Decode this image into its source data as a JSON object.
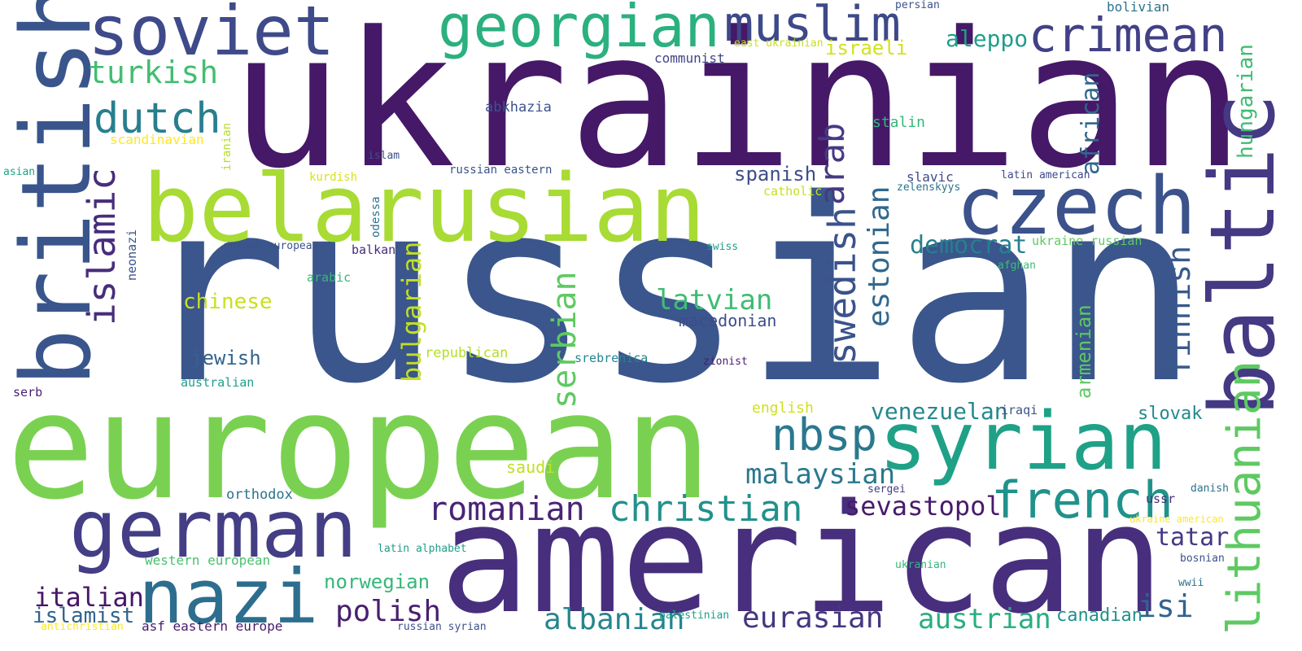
{
  "words": [
    {
      "id": "ukrainian",
      "text": "ukrainian",
      "color": "#461868"
    },
    {
      "id": "russian",
      "text": "russian",
      "color": "#3A568C"
    },
    {
      "id": "european",
      "text": "european",
      "color": "#7AD151"
    },
    {
      "id": "american",
      "text": "american",
      "color": "#472F7D"
    },
    {
      "id": "belarusian",
      "text": "belarusian",
      "color": "#A8DB34"
    },
    {
      "id": "british",
      "text": "british",
      "color": "#39558C"
    },
    {
      "id": "german",
      "text": "german",
      "color": "#433E85"
    },
    {
      "id": "nazi",
      "text": "nazi",
      "color": "#2D6E8E"
    },
    {
      "id": "syrian",
      "text": "syrian",
      "color": "#1FA187"
    },
    {
      "id": "czech",
      "text": "czech",
      "color": "#3B528B"
    },
    {
      "id": "baltic",
      "text": "baltic",
      "color": "#443983"
    },
    {
      "id": "soviet",
      "text": "soviet",
      "color": "#3E4A89"
    },
    {
      "id": "georgian",
      "text": "georgian",
      "color": "#2BB07F"
    },
    {
      "id": "muslim",
      "text": "muslim",
      "color": "#3E4989"
    },
    {
      "id": "crimean",
      "text": "crimean",
      "color": "#424086"
    },
    {
      "id": "french",
      "text": "french",
      "color": "#20928C"
    },
    {
      "id": "islamic",
      "text": "islamic",
      "color": "#472D7B"
    },
    {
      "id": "dutch",
      "text": "dutch",
      "color": "#277F8E"
    },
    {
      "id": "turkish",
      "text": "turkish",
      "color": "#42BE71"
    },
    {
      "id": "nbsp",
      "text": "nbsp",
      "color": "#2A788E"
    },
    {
      "id": "christian",
      "text": "christian",
      "color": "#21918C"
    },
    {
      "id": "swedish",
      "text": "swedish",
      "color": "#3B528B"
    },
    {
      "id": "lithuanian",
      "text": "lithuanian",
      "color": "#5EC962"
    },
    {
      "id": "romanian",
      "text": "romanian",
      "color": "#482576"
    },
    {
      "id": "eurasian",
      "text": "eurasian",
      "color": "#453781"
    },
    {
      "id": "albanian",
      "text": "albanian",
      "color": "#25858E"
    },
    {
      "id": "austrian",
      "text": "austrian",
      "color": "#28AE80"
    },
    {
      "id": "serbian",
      "text": "serbian",
      "color": "#5EC962"
    },
    {
      "id": "sevastopol",
      "text": "sevastopol",
      "color": "#481A6C"
    },
    {
      "id": "polish",
      "text": "polish",
      "color": "#481F70"
    },
    {
      "id": "malaysian",
      "text": "malaysian",
      "color": "#2A788E"
    },
    {
      "id": "latvian",
      "text": "latvian",
      "color": "#3FBC73"
    },
    {
      "id": "finnish",
      "text": "finnish",
      "color": "#38598C"
    },
    {
      "id": "estonian",
      "text": "estonian",
      "color": "#31688E"
    },
    {
      "id": "arab",
      "text": "arab",
      "color": "#443A83"
    },
    {
      "id": "bulgarian",
      "text": "bulgarian",
      "color": "#C2DF23"
    },
    {
      "id": "hungarian",
      "text": "hungarian",
      "color": "#3FBC73"
    },
    {
      "id": "african",
      "text": "african",
      "color": "#31678E"
    },
    {
      "id": "isi",
      "text": "isi",
      "color": "#33638D"
    },
    {
      "id": "tatar",
      "text": "tatar",
      "color": "#443983"
    },
    {
      "id": "italian",
      "text": "italian",
      "color": "#481668"
    },
    {
      "id": "islamist",
      "text": "islamist",
      "color": "#33638D"
    },
    {
      "id": "democrat",
      "text": "democrat",
      "color": "#277F8E"
    },
    {
      "id": "venezuelan",
      "text": "venezuelan",
      "color": "#24878E"
    },
    {
      "id": "norwegian",
      "text": "norwegian",
      "color": "#35B779"
    },
    {
      "id": "aleppo",
      "text": "aleppo",
      "color": "#1F9E89"
    },
    {
      "id": "armenian",
      "text": "armenian",
      "color": "#5EC962"
    },
    {
      "id": "chinese",
      "text": "chinese",
      "color": "#C8E020"
    },
    {
      "id": "israeli",
      "text": "israeli",
      "color": "#D2E21B"
    },
    {
      "id": "spanish",
      "text": "spanish",
      "color": "#3E4C8A"
    },
    {
      "id": "jewish",
      "text": "jewish",
      "color": "#33638D"
    },
    {
      "id": "slovak",
      "text": "slovak",
      "color": "#23898E"
    },
    {
      "id": "canadian",
      "text": "canadian",
      "color": "#21918C"
    },
    {
      "id": "macedonian",
      "text": "macedonian",
      "color": "#3D4D8A"
    },
    {
      "id": "stalin",
      "text": "stalin",
      "color": "#35B779"
    },
    {
      "id": "communist",
      "text": "communist",
      "color": "#414487"
    },
    {
      "id": "abkhazia",
      "text": "abkhazia",
      "color": "#3B528B"
    },
    {
      "id": "republican",
      "text": "republican",
      "color": "#B5DE2B"
    },
    {
      "id": "saudi",
      "text": "saudi",
      "color": "#C0DF25"
    },
    {
      "id": "english",
      "text": "english",
      "color": "#D0E11C"
    },
    {
      "id": "orthodox",
      "text": "orthodox",
      "color": "#2C728E"
    },
    {
      "id": "srebrenica",
      "text": "srebrenica",
      "color": "#24868E"
    },
    {
      "id": "scandinavian",
      "text": "scandinavian",
      "color": "#FDE725"
    },
    {
      "id": "western_european",
      "text": "western european",
      "color": "#4AC16D"
    },
    {
      "id": "neonazi",
      "text": "neonazi",
      "color": "#3B528B"
    },
    {
      "id": "ukraine_russian",
      "text": "ukraine russian",
      "color": "#5EC962"
    },
    {
      "id": "slavic",
      "text": "slavic",
      "color": "#3E4A89"
    },
    {
      "id": "zelenskyys",
      "text": "zelenskyys",
      "color": "#2C728E"
    },
    {
      "id": "latin_american",
      "text": "latin american",
      "color": "#3E4989"
    },
    {
      "id": "catholic",
      "text": "catholic",
      "color": "#C8E020"
    },
    {
      "id": "russian_eastern",
      "text": "russian eastern",
      "color": "#3B528B"
    },
    {
      "id": "asf_eastern_europe",
      "text": "asf eastern europe",
      "color": "#481A6C"
    },
    {
      "id": "kurdish",
      "text": "kurdish",
      "color": "#D8E219"
    },
    {
      "id": "arabic",
      "text": "arabic",
      "color": "#35B779"
    },
    {
      "id": "balkan",
      "text": "balkan",
      "color": "#472D7B"
    },
    {
      "id": "australian",
      "text": "australian",
      "color": "#1F9E89"
    },
    {
      "id": "bolivian",
      "text": "bolivian",
      "color": "#2C728E"
    },
    {
      "id": "iraqi",
      "text": "iraqi",
      "color": "#3B528B"
    },
    {
      "id": "ussr",
      "text": "ussr",
      "color": "#472D7B"
    },
    {
      "id": "sergei",
      "text": "sergei",
      "color": "#433E85"
    },
    {
      "id": "danish",
      "text": "danish",
      "color": "#2C728E"
    },
    {
      "id": "serb",
      "text": "serb",
      "color": "#481F70"
    },
    {
      "id": "swiss",
      "text": "swiss",
      "color": "#1F9E89"
    },
    {
      "id": "afghan",
      "text": "afghan",
      "color": "#3FBC73"
    },
    {
      "id": "zionist",
      "text": "zionist",
      "color": "#481F70"
    },
    {
      "id": "europe_european",
      "text": "europe european",
      "color": "#3B528B"
    },
    {
      "id": "odessa",
      "text": "odessa",
      "color": "#2C728E"
    },
    {
      "id": "iranian",
      "text": "iranian",
      "color": "#B5DE2B"
    },
    {
      "id": "islam",
      "text": "islam",
      "color": "#3B528B"
    },
    {
      "id": "asian",
      "text": "asian",
      "color": "#1FA187"
    },
    {
      "id": "persian",
      "text": "persian",
      "color": "#3B528B"
    },
    {
      "id": "east_ukrainian",
      "text": "east ukrainian",
      "color": "#C8E020"
    },
    {
      "id": "latin_alphabet",
      "text": "latin alphabet",
      "color": "#1F9E89"
    },
    {
      "id": "ukranian",
      "text": "ukranian",
      "color": "#35B779"
    },
    {
      "id": "bosnian",
      "text": "bosnian",
      "color": "#3B528B"
    },
    {
      "id": "ukraine_american",
      "text": "ukraine american",
      "color": "#FDE725"
    },
    {
      "id": "wwii",
      "text": "wwii",
      "color": "#2C728E"
    },
    {
      "id": "palestinian",
      "text": "palestinian",
      "color": "#1F9E89"
    },
    {
      "id": "russian_syrian",
      "text": "russian syrian",
      "color": "#3B528B"
    },
    {
      "id": "antichristian",
      "text": "antichristian",
      "color": "#FDE725"
    }
  ]
}
